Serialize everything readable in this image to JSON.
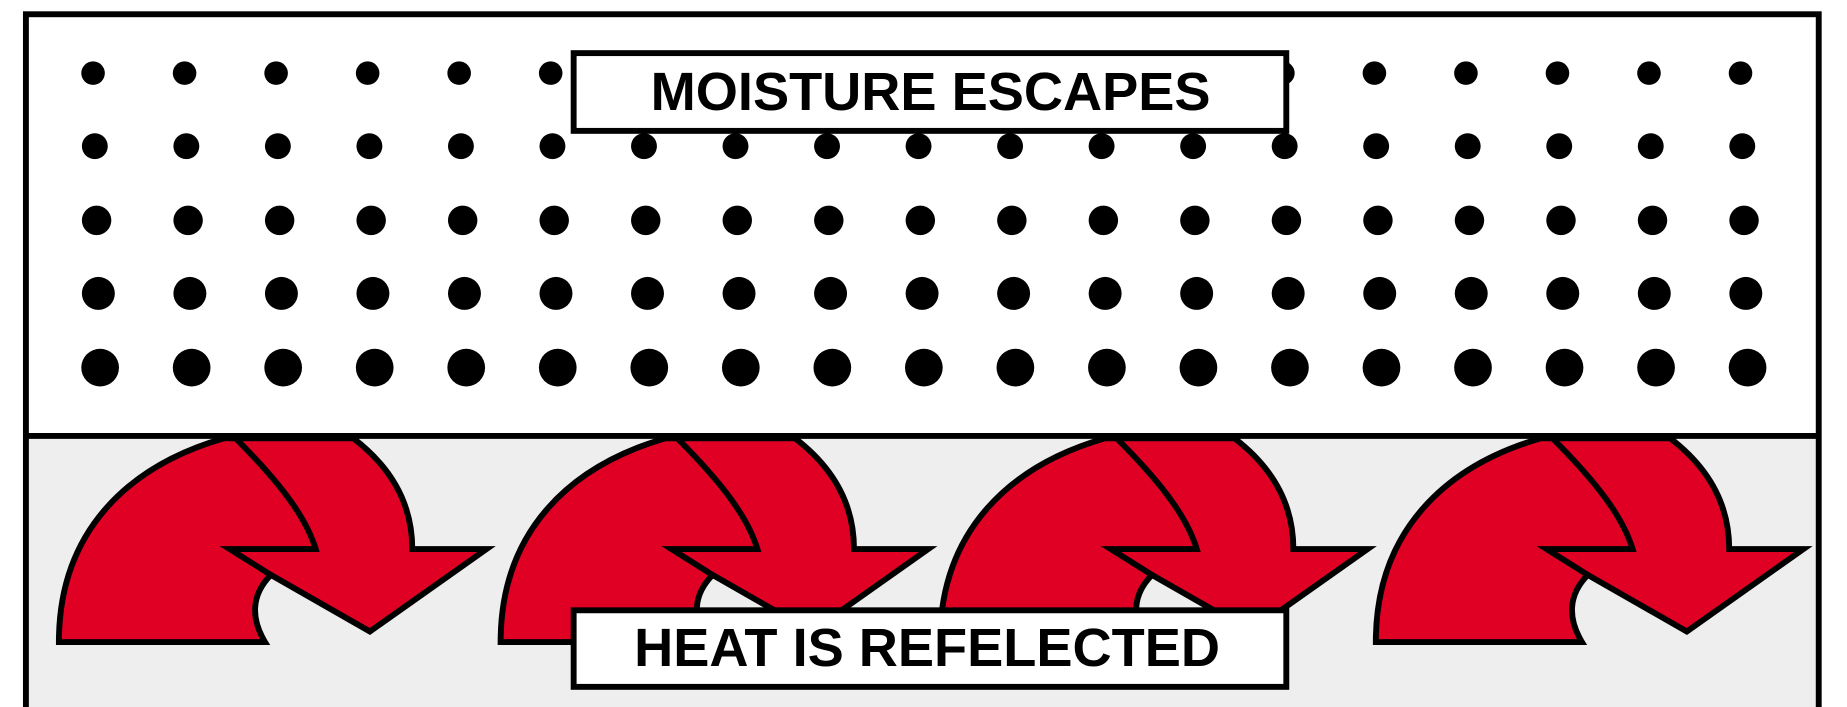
{
  "labels": {
    "top": "MOISTURE ESCAPES",
    "bottom": "HEAT IS REFELECTED"
  }
}
